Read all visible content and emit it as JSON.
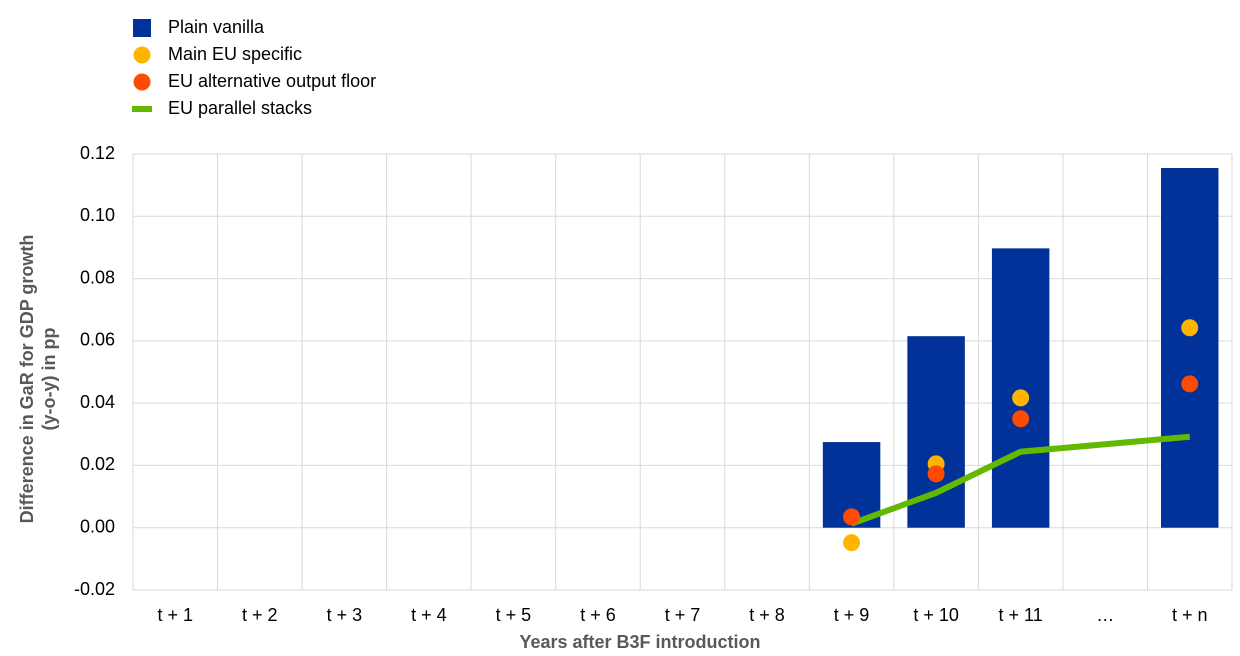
{
  "chart_data": {
    "type": "bar",
    "x_label": "Years after B3F introduction",
    "y_label": [
      "Difference in GaR for GDP growth",
      "(y-o-y) in pp"
    ],
    "categories": [
      "t + 1",
      "t + 2",
      "t + 3",
      "t + 4",
      "t + 5",
      "t + 6",
      "t + 7",
      "t + 8",
      "t + 9",
      "t + 10",
      "t + 11",
      "…",
      "t + n"
    ],
    "series": [
      {
        "name": "Plain vanilla",
        "type": "bar",
        "color": "#003299",
        "values": [
          null,
          null,
          null,
          null,
          null,
          null,
          null,
          null,
          0.0275,
          0.0615,
          0.0897,
          null,
          0.1155
        ]
      },
      {
        "name": "Main EU specific",
        "type": "scatter",
        "color": "#ffb400",
        "values": [
          null,
          null,
          null,
          null,
          null,
          null,
          null,
          null,
          -0.0048,
          0.0205,
          0.0417,
          null,
          0.0642
        ]
      },
      {
        "name": "EU alternative output floor",
        "type": "scatter",
        "color": "#ff4b00",
        "values": [
          null,
          null,
          null,
          null,
          null,
          null,
          null,
          null,
          0.0035,
          0.0173,
          0.035,
          null,
          0.0462
        ]
      },
      {
        "name": "EU parallel stacks",
        "type": "line",
        "color": "#65b800",
        "values": [
          null,
          null,
          null,
          null,
          null,
          null,
          null,
          null,
          0.0013,
          0.0112,
          0.0244,
          0.0268,
          0.0292
        ]
      }
    ],
    "ylim": [
      -0.02,
      0.12
    ],
    "yticks": [
      0.12,
      {
        "value": 0.1,
        "label": "0.10"
      },
      0.08,
      0.06,
      0.04,
      0.02,
      {
        "value": 0,
        "label": "0.00"
      },
      -0.02
    ],
    "grid": true,
    "legend": "top-left"
  }
}
